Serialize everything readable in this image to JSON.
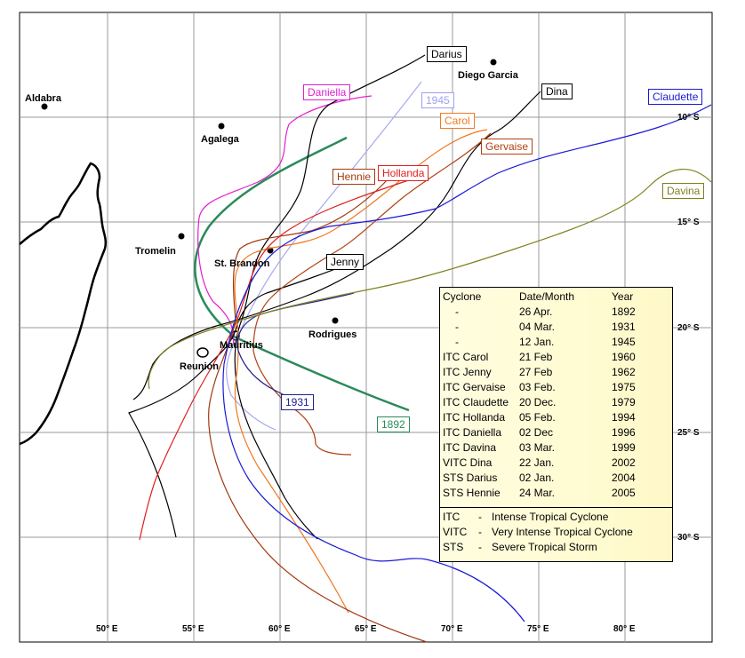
{
  "places": [
    {
      "name": "Aldabra"
    },
    {
      "name": "Agalega"
    },
    {
      "name": "Tromelin"
    },
    {
      "name": "St. Brandon"
    },
    {
      "name": "Diego Garcia"
    },
    {
      "name": "Rodrigues"
    },
    {
      "name": "Mauritius"
    },
    {
      "name": "Reunion"
    }
  ],
  "latitude_labels": [
    "10° S",
    "15° S",
    "20° S",
    "25° S",
    "30° S"
  ],
  "longitude_labels": [
    "50° E",
    "55° E",
    "60° E",
    "65° E",
    "70° E",
    "75° E",
    "80° E"
  ],
  "track_labels": [
    {
      "name": "Darius",
      "color": "#000000"
    },
    {
      "name": "Dina",
      "color": "#000000"
    },
    {
      "name": "Claudette",
      "color": "#1a1ad6"
    },
    {
      "name": "Daniella",
      "color": "#e020d0"
    },
    {
      "name": "1945",
      "color": "#a0a0f0"
    },
    {
      "name": "Carol",
      "color": "#f07820"
    },
    {
      "name": "Gervaise",
      "color": "#b04010"
    },
    {
      "name": "Hennie",
      "color": "#a03a10"
    },
    {
      "name": "Hollanda",
      "color": "#e02020"
    },
    {
      "name": "Davina",
      "color": "#808020"
    },
    {
      "name": "Jenny",
      "color": "#000000"
    },
    {
      "name": "1931",
      "color": "#202090"
    },
    {
      "name": "1892",
      "color": "#2a8a5a"
    }
  ],
  "legend": {
    "headers": {
      "cyclone": "Cyclone",
      "date": "Date/Month",
      "year": "Year"
    },
    "rows": [
      {
        "cyclone": "-",
        "date": "26 Apr.",
        "year": "1892"
      },
      {
        "cyclone": "-",
        "date": "04 Mar.",
        "year": "1931"
      },
      {
        "cyclone": "-",
        "date": "12 Jan.",
        "year": "1945"
      },
      {
        "cyclone": "ITC Carol",
        "date": "21 Feb",
        "year": "1960"
      },
      {
        "cyclone": "ITC Jenny",
        "date": "27 Feb",
        "year": "1962"
      },
      {
        "cyclone": "ITC Gervaise",
        "date": "03 Feb.",
        "year": "1975"
      },
      {
        "cyclone": "ITC Claudette",
        "date": "20 Dec.",
        "year": "1979"
      },
      {
        "cyclone": "ITC Hollanda",
        "date": "05 Feb.",
        "year": "1994"
      },
      {
        "cyclone": "ITC Daniella",
        "date": "02 Dec",
        "year": "1996"
      },
      {
        "cyclone": "ITC Davina",
        "date": "03 Mar.",
        "year": "1999"
      },
      {
        "cyclone": "VITC Dina",
        "date": "22 Jan.",
        "year": "2002"
      },
      {
        "cyclone": "STS Darius",
        "date": "02 Jan.",
        "year": "2004"
      },
      {
        "cyclone": "STS Hennie",
        "date": "24 Mar.",
        "year": "2005"
      }
    ],
    "abbreviations": [
      {
        "abbr": "ITC",
        "dash": "-",
        "meaning": "Intense Tropical Cyclone"
      },
      {
        "abbr": "VITC",
        "dash": "-",
        "meaning": "Very Intense Tropical Cyclone"
      },
      {
        "abbr": "STS",
        "dash": "-",
        "meaning": "Severe Tropical Storm"
      }
    ]
  }
}
